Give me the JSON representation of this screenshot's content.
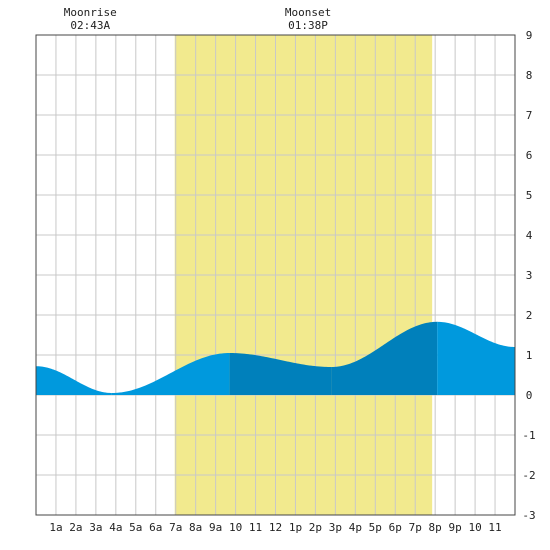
{
  "chart_data": {
    "type": "area",
    "title": "",
    "xlabel": "",
    "ylabel": "",
    "xlim": [
      0,
      24
    ],
    "ylim": [
      -3,
      9
    ],
    "grid": true,
    "x_ticks": [
      {
        "x": 1,
        "label": "1a"
      },
      {
        "x": 2,
        "label": "2a"
      },
      {
        "x": 3,
        "label": "3a"
      },
      {
        "x": 4,
        "label": "4a"
      },
      {
        "x": 5,
        "label": "5a"
      },
      {
        "x": 6,
        "label": "6a"
      },
      {
        "x": 7,
        "label": "7a"
      },
      {
        "x": 8,
        "label": "8a"
      },
      {
        "x": 9,
        "label": "9a"
      },
      {
        "x": 10,
        "label": "10"
      },
      {
        "x": 11,
        "label": "11"
      },
      {
        "x": 12,
        "label": "12"
      },
      {
        "x": 13,
        "label": "1p"
      },
      {
        "x": 14,
        "label": "2p"
      },
      {
        "x": 15,
        "label": "3p"
      },
      {
        "x": 16,
        "label": "4p"
      },
      {
        "x": 17,
        "label": "5p"
      },
      {
        "x": 18,
        "label": "6p"
      },
      {
        "x": 19,
        "label": "7p"
      },
      {
        "x": 20,
        "label": "8p"
      },
      {
        "x": 21,
        "label": "9p"
      },
      {
        "x": 22,
        "label": "10"
      },
      {
        "x": 23,
        "label": "11"
      }
    ],
    "y_ticks": [
      -3,
      -2,
      -1,
      0,
      1,
      2,
      3,
      4,
      5,
      6,
      7,
      8,
      9
    ],
    "daylight": {
      "start": 6.95,
      "end": 19.85
    },
    "tide_extrema": [
      {
        "x": 0.0,
        "y": 0.72
      },
      {
        "x": 3.8,
        "y": 0.05
      },
      {
        "x": 9.7,
        "y": 1.05
      },
      {
        "x": 14.8,
        "y": 0.7
      },
      {
        "x": 20.1,
        "y": 1.83
      },
      {
        "x": 24.0,
        "y": 1.2
      }
    ],
    "band_breaks": [
      3.8,
      9.7,
      14.8,
      20.1
    ],
    "colors": {
      "tide_light": "#0099dd",
      "tide_dark": "#0080bb",
      "daylight": "#f2ea8e",
      "grid": "#c8c8c8",
      "axis": "#444444",
      "background": "#ffffff"
    },
    "annotations": [
      {
        "label": "Moonrise",
        "time": "02:43A",
        "x": 2.72
      },
      {
        "label": "Moonset",
        "time": "01:38P",
        "x": 13.63
      }
    ]
  }
}
